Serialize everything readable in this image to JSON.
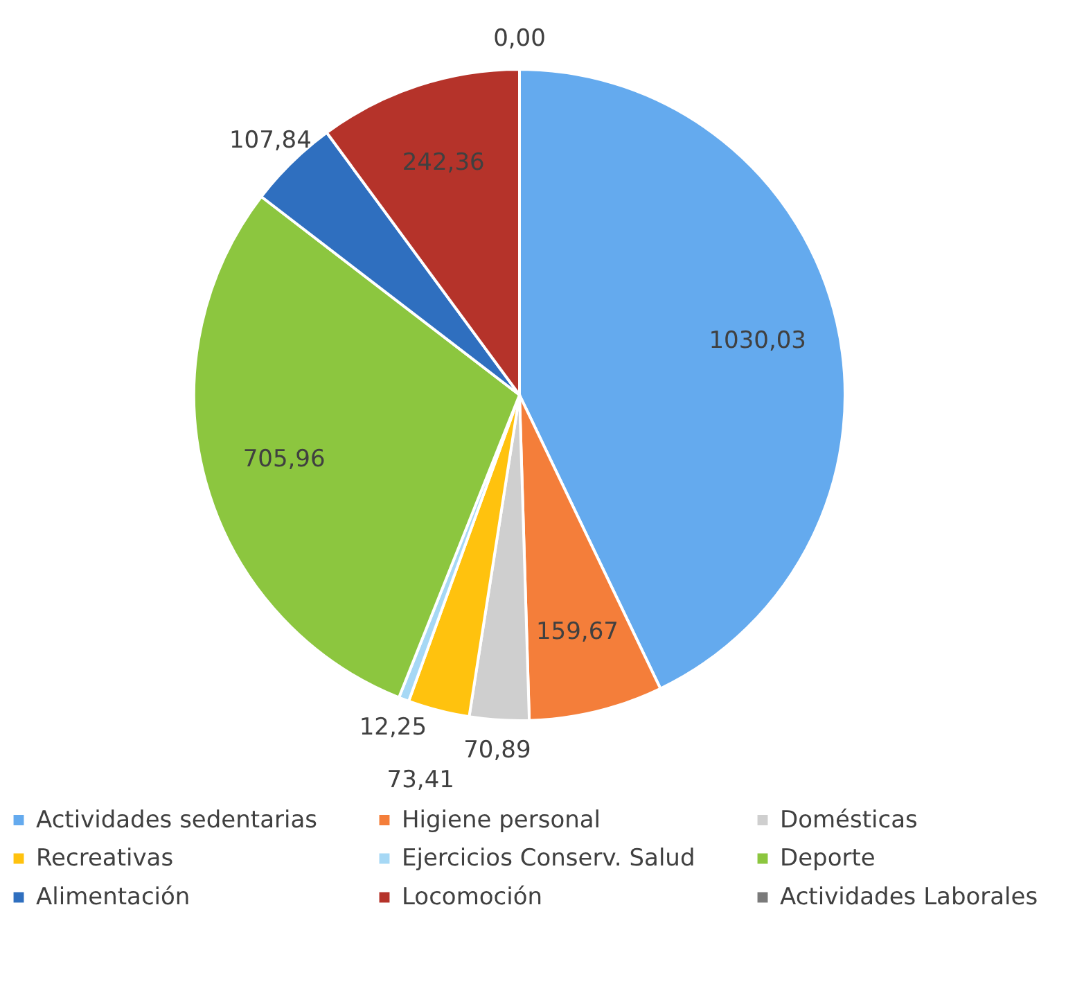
{
  "chart_data": {
    "type": "pie",
    "categories": [
      "Actividades sedentarias",
      "Higiene personal",
      "Domésticas",
      "Recreativas",
      "Ejercicios Conserv. Salud",
      "Deporte",
      "Alimentación",
      "Locomoción",
      "Actividades Laborales"
    ],
    "values": [
      1030.03,
      159.67,
      70.89,
      73.41,
      12.25,
      705.96,
      107.84,
      242.36,
      0.0
    ],
    "value_labels": [
      "1030,03",
      "159,67",
      "70,89",
      "73,41",
      "12,25",
      "705,96",
      "107,84",
      "242,36",
      "0,00"
    ],
    "colors": [
      "#64aaee",
      "#f47e3a",
      "#cfcfcf",
      "#ffc20e",
      "#a6d8f5",
      "#8cc63f",
      "#2f6fbf",
      "#b5332a",
      "#7a7a7a"
    ],
    "legend": "bottom"
  }
}
